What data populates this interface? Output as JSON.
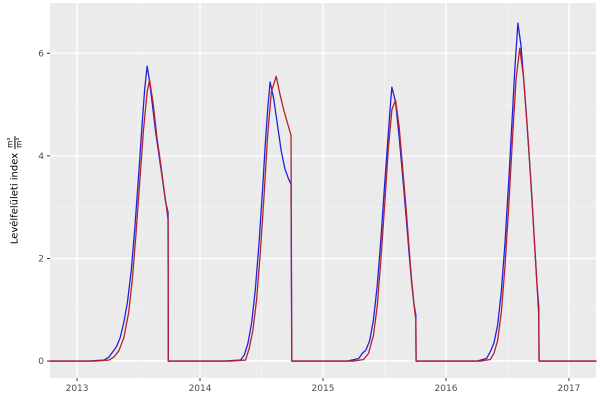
{
  "chart_data": {
    "type": "line",
    "title": "",
    "xlabel": "",
    "ylabel": {
      "text": "Levélfelületi index",
      "unit_numerator": "m²",
      "unit_denominator": "m²"
    },
    "legend": "none",
    "grid": true,
    "panel_bg": "#EBEBEB",
    "grid_major_color": "#FFFFFF",
    "grid_minor_color": "#F4F4F4",
    "tick_color": "#333333",
    "tick_label_color": "#4D4D4D",
    "x_range": [
      2012.78,
      2017.22
    ],
    "y_range": [
      -0.33,
      6.98
    ],
    "x_ticks": [
      2013,
      2014,
      2015,
      2016,
      2017
    ],
    "y_ticks": [
      0,
      2,
      4,
      6
    ],
    "x_minor_ticks": [
      2013.5,
      2014.5,
      2015.5,
      2016.5
    ],
    "y_minor_ticks": [
      1,
      3,
      5
    ],
    "series": [
      {
        "name": "series-blue",
        "color": "#2121DC",
        "points": [
          [
            2012.78,
            0
          ],
          [
            2013.1,
            0
          ],
          [
            2013.22,
            0.02
          ],
          [
            2013.26,
            0.08
          ],
          [
            2013.29,
            0.18
          ],
          [
            2013.32,
            0.28
          ],
          [
            2013.35,
            0.45
          ],
          [
            2013.38,
            0.75
          ],
          [
            2013.41,
            1.15
          ],
          [
            2013.44,
            1.75
          ],
          [
            2013.47,
            2.6
          ],
          [
            2013.5,
            3.6
          ],
          [
            2013.53,
            4.65
          ],
          [
            2013.55,
            5.3
          ],
          [
            2013.57,
            5.75
          ],
          [
            2013.59,
            5.45
          ],
          [
            2013.61,
            5.05
          ],
          [
            2013.64,
            4.45
          ],
          [
            2013.67,
            3.95
          ],
          [
            2013.7,
            3.45
          ],
          [
            2013.72,
            3.1
          ],
          [
            2013.74,
            2.9
          ],
          [
            2013.742,
            0
          ],
          [
            2013.95,
            0
          ],
          [
            2014.2,
            0
          ],
          [
            2014.33,
            0.02
          ],
          [
            2014.36,
            0.12
          ],
          [
            2014.39,
            0.35
          ],
          [
            2014.42,
            0.75
          ],
          [
            2014.45,
            1.4
          ],
          [
            2014.48,
            2.3
          ],
          [
            2014.51,
            3.4
          ],
          [
            2014.53,
            4.2
          ],
          [
            2014.55,
            4.9
          ],
          [
            2014.57,
            5.44
          ],
          [
            2014.6,
            5.1
          ],
          [
            2014.63,
            4.6
          ],
          [
            2014.66,
            4.1
          ],
          [
            2014.69,
            3.75
          ],
          [
            2014.72,
            3.55
          ],
          [
            2014.74,
            3.45
          ],
          [
            2014.746,
            0
          ],
          [
            2015.0,
            0
          ],
          [
            2015.2,
            0
          ],
          [
            2015.29,
            0.05
          ],
          [
            2015.32,
            0.15
          ],
          [
            2015.35,
            0.22
          ],
          [
            2015.38,
            0.4
          ],
          [
            2015.41,
            0.8
          ],
          [
            2015.44,
            1.45
          ],
          [
            2015.47,
            2.35
          ],
          [
            2015.5,
            3.4
          ],
          [
            2015.53,
            4.4
          ],
          [
            2015.55,
            5.05
          ],
          [
            2015.56,
            5.34
          ],
          [
            2015.59,
            5.05
          ],
          [
            2015.62,
            4.35
          ],
          [
            2015.65,
            3.55
          ],
          [
            2015.68,
            2.7
          ],
          [
            2015.7,
            2.1
          ],
          [
            2015.72,
            1.55
          ],
          [
            2015.74,
            1.1
          ],
          [
            2015.755,
            0.9
          ],
          [
            2015.757,
            0
          ],
          [
            2016.0,
            0
          ],
          [
            2016.25,
            0
          ],
          [
            2016.33,
            0.05
          ],
          [
            2016.36,
            0.18
          ],
          [
            2016.39,
            0.35
          ],
          [
            2016.42,
            0.7
          ],
          [
            2016.45,
            1.35
          ],
          [
            2016.48,
            2.3
          ],
          [
            2016.51,
            3.5
          ],
          [
            2016.54,
            4.8
          ],
          [
            2016.56,
            5.7
          ],
          [
            2016.585,
            6.59
          ],
          [
            2016.61,
            6.15
          ],
          [
            2016.64,
            5.25
          ],
          [
            2016.67,
            4.25
          ],
          [
            2016.7,
            3.15
          ],
          [
            2016.72,
            2.3
          ],
          [
            2016.74,
            1.5
          ],
          [
            2016.755,
            1.05
          ],
          [
            2016.757,
            0
          ],
          [
            2017.0,
            0
          ],
          [
            2017.22,
            0
          ]
        ]
      },
      {
        "name": "series-red",
        "color": "#B22230",
        "points": [
          [
            2012.78,
            0
          ],
          [
            2013.15,
            0
          ],
          [
            2013.26,
            0.02
          ],
          [
            2013.3,
            0.08
          ],
          [
            2013.34,
            0.2
          ],
          [
            2013.38,
            0.45
          ],
          [
            2013.42,
            0.95
          ],
          [
            2013.45,
            1.6
          ],
          [
            2013.48,
            2.5
          ],
          [
            2013.51,
            3.5
          ],
          [
            2013.54,
            4.5
          ],
          [
            2013.57,
            5.25
          ],
          [
            2013.59,
            5.48
          ],
          [
            2013.62,
            5.0
          ],
          [
            2013.65,
            4.35
          ],
          [
            2013.68,
            3.85
          ],
          [
            2013.71,
            3.3
          ],
          [
            2013.73,
            2.95
          ],
          [
            2013.74,
            2.75
          ],
          [
            2013.742,
            0
          ],
          [
            2014.0,
            0
          ],
          [
            2014.25,
            0
          ],
          [
            2014.37,
            0.02
          ],
          [
            2014.4,
            0.25
          ],
          [
            2014.43,
            0.6
          ],
          [
            2014.46,
            1.2
          ],
          [
            2014.49,
            2.1
          ],
          [
            2014.52,
            3.2
          ],
          [
            2014.55,
            4.4
          ],
          [
            2014.58,
            5.25
          ],
          [
            2014.62,
            5.55
          ],
          [
            2014.65,
            5.2
          ],
          [
            2014.68,
            4.9
          ],
          [
            2014.71,
            4.65
          ],
          [
            2014.74,
            4.4
          ],
          [
            2014.746,
            0
          ],
          [
            2015.0,
            0
          ],
          [
            2015.25,
            0
          ],
          [
            2015.33,
            0.03
          ],
          [
            2015.37,
            0.15
          ],
          [
            2015.41,
            0.5
          ],
          [
            2015.44,
            1.05
          ],
          [
            2015.47,
            1.95
          ],
          [
            2015.5,
            3.0
          ],
          [
            2015.53,
            4.1
          ],
          [
            2015.56,
            4.9
          ],
          [
            2015.59,
            5.09
          ],
          [
            2015.62,
            4.55
          ],
          [
            2015.65,
            3.7
          ],
          [
            2015.68,
            2.85
          ],
          [
            2015.7,
            2.2
          ],
          [
            2015.72,
            1.6
          ],
          [
            2015.74,
            1.1
          ],
          [
            2015.755,
            0.8
          ],
          [
            2015.757,
            0
          ],
          [
            2016.0,
            0
          ],
          [
            2016.28,
            0
          ],
          [
            2016.36,
            0.03
          ],
          [
            2016.39,
            0.15
          ],
          [
            2016.42,
            0.4
          ],
          [
            2016.45,
            0.95
          ],
          [
            2016.48,
            1.85
          ],
          [
            2016.51,
            3.0
          ],
          [
            2016.54,
            4.3
          ],
          [
            2016.57,
            5.5
          ],
          [
            2016.6,
            6.1
          ],
          [
            2016.63,
            5.55
          ],
          [
            2016.66,
            4.6
          ],
          [
            2016.69,
            3.5
          ],
          [
            2016.715,
            2.5
          ],
          [
            2016.74,
            1.5
          ],
          [
            2016.754,
            0.9
          ],
          [
            2016.757,
            0
          ],
          [
            2017.0,
            0
          ],
          [
            2017.22,
            0
          ]
        ]
      }
    ]
  }
}
